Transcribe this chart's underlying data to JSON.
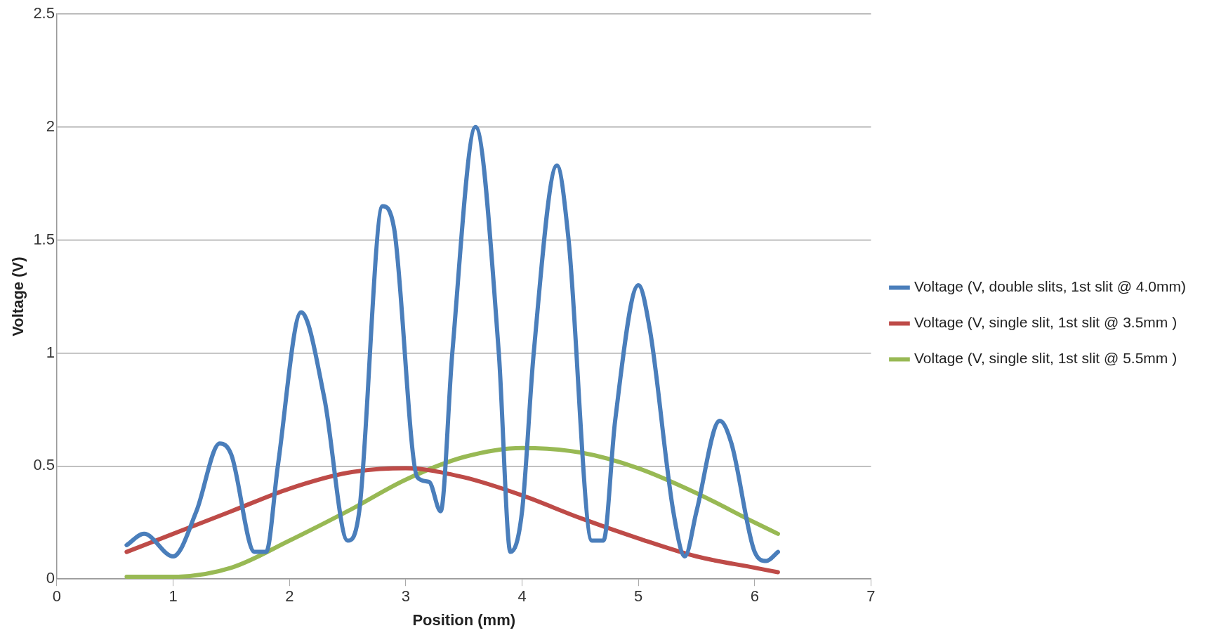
{
  "chart_data": {
    "type": "line",
    "xlabel": "Position (mm)",
    "ylabel": "Voltage (V)",
    "xlim": [
      0,
      7
    ],
    "xticks": [
      0,
      1,
      2,
      3,
      4,
      5,
      6,
      7
    ],
    "ylim": [
      0,
      2.5
    ],
    "yticks": [
      0,
      0.5,
      1,
      1.5,
      2,
      2.5
    ],
    "grid": "y",
    "legend": "right",
    "marker": "none",
    "line_style": "solid",
    "series": [
      {
        "name": "Voltage (V, double slits, 1st slit @ 4.0mm)",
        "color": "#4a7ebb",
        "x": [
          0.6,
          0.75,
          1.0,
          1.2,
          1.4,
          1.5,
          1.7,
          1.8,
          1.9,
          2.1,
          2.3,
          2.5,
          2.6,
          2.8,
          2.9,
          3.1,
          3.2,
          3.3,
          3.4,
          3.6,
          3.8,
          3.9,
          4.0,
          4.1,
          4.3,
          4.4,
          4.6,
          4.7,
          4.8,
          5.0,
          5.1,
          5.3,
          5.4,
          5.5,
          5.7,
          5.8,
          6.0,
          6.1,
          6.2
        ],
        "values": [
          0.15,
          0.2,
          0.1,
          0.3,
          0.6,
          0.55,
          0.12,
          0.12,
          0.5,
          1.18,
          0.8,
          0.17,
          0.3,
          1.65,
          1.55,
          0.45,
          0.43,
          0.3,
          1.0,
          2.0,
          1.0,
          0.12,
          0.3,
          1.0,
          1.83,
          1.5,
          0.17,
          0.17,
          0.7,
          1.3,
          1.1,
          0.3,
          0.1,
          0.3,
          0.7,
          0.6,
          0.12,
          0.08,
          0.12
        ]
      },
      {
        "name": "Voltage (V, single slit, 1st slit @ 3.5mm )",
        "color": "#be4b48",
        "x": [
          0.6,
          1.0,
          1.5,
          2.0,
          2.5,
          3.0,
          3.5,
          4.0,
          4.5,
          5.0,
          5.5,
          6.0,
          6.2
        ],
        "values": [
          0.12,
          0.2,
          0.3,
          0.4,
          0.47,
          0.49,
          0.45,
          0.37,
          0.27,
          0.18,
          0.1,
          0.05,
          0.03
        ]
      },
      {
        "name": "Voltage (V, single slit, 1st slit @ 5.5mm )",
        "color": "#98b954",
        "x": [
          0.6,
          1.0,
          1.5,
          2.0,
          2.5,
          3.0,
          3.5,
          4.0,
          4.5,
          5.0,
          5.5,
          6.0,
          6.2
        ],
        "values": [
          0.01,
          0.01,
          0.05,
          0.17,
          0.3,
          0.44,
          0.54,
          0.58,
          0.56,
          0.49,
          0.38,
          0.25,
          0.2
        ]
      }
    ]
  }
}
